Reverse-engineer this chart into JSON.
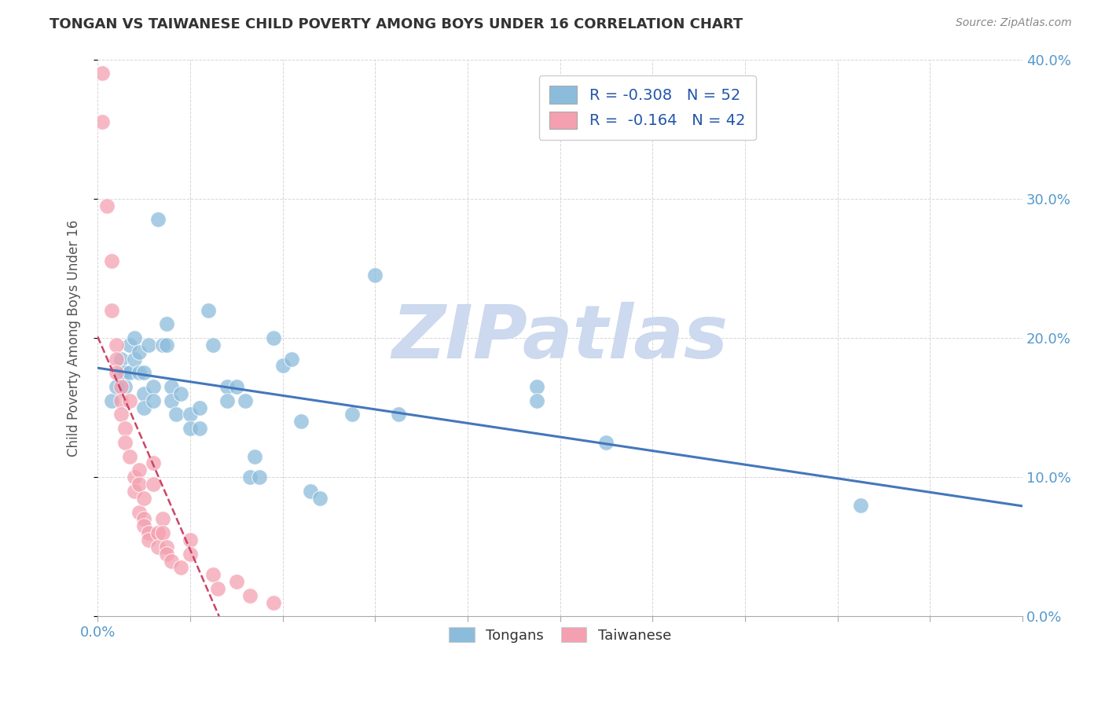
{
  "title": "TONGAN VS TAIWANESE CHILD POVERTY AMONG BOYS UNDER 16 CORRELATION CHART",
  "source": "Source: ZipAtlas.com",
  "ylabel": "Child Poverty Among Boys Under 16",
  "xlim": [
    0.0,
    0.2
  ],
  "ylim": [
    0.0,
    0.4
  ],
  "xticks": [
    0.0,
    0.02,
    0.04,
    0.06,
    0.08,
    0.1,
    0.12,
    0.14,
    0.16,
    0.18,
    0.2
  ],
  "xtick_labels_sparse": {
    "0.0": "0.0%",
    "0.20": "20.0%"
  },
  "yticks": [
    0.0,
    0.1,
    0.2,
    0.3,
    0.4
  ],
  "ytick_labels_right": [
    "0.0%",
    "10.0%",
    "20.0%",
    "30.0%",
    "40.0%"
  ],
  "legend_line1": "R = -0.308   N = 52",
  "legend_line2": "R =  -0.164   N = 42",
  "legend_labels_bottom": [
    "Tongans",
    "Taiwanese"
  ],
  "tongan_color": "#8bbcdb",
  "taiwanese_color": "#f4a0b0",
  "tongan_line_color": "#4477bb",
  "taiwanese_line_color": "#cc4466",
  "watermark": "ZIPatlas",
  "watermark_color": "#ccd9ee",
  "background_color": "#ffffff",
  "grid_color": "#cccccc",
  "title_color": "#333333",
  "axis_label_color": "#555555",
  "tick_label_color_right": "#5599cc",
  "tick_label_color_bottom": "#5599cc",
  "tongan_points": [
    [
      0.003,
      0.155
    ],
    [
      0.004,
      0.165
    ],
    [
      0.005,
      0.175
    ],
    [
      0.005,
      0.185
    ],
    [
      0.006,
      0.175
    ],
    [
      0.006,
      0.165
    ],
    [
      0.007,
      0.195
    ],
    [
      0.007,
      0.175
    ],
    [
      0.008,
      0.185
    ],
    [
      0.008,
      0.2
    ],
    [
      0.009,
      0.175
    ],
    [
      0.009,
      0.19
    ],
    [
      0.01,
      0.175
    ],
    [
      0.01,
      0.16
    ],
    [
      0.01,
      0.15
    ],
    [
      0.011,
      0.195
    ],
    [
      0.012,
      0.165
    ],
    [
      0.012,
      0.155
    ],
    [
      0.013,
      0.285
    ],
    [
      0.014,
      0.195
    ],
    [
      0.015,
      0.195
    ],
    [
      0.015,
      0.21
    ],
    [
      0.016,
      0.165
    ],
    [
      0.016,
      0.155
    ],
    [
      0.017,
      0.145
    ],
    [
      0.018,
      0.16
    ],
    [
      0.02,
      0.145
    ],
    [
      0.02,
      0.135
    ],
    [
      0.022,
      0.15
    ],
    [
      0.022,
      0.135
    ],
    [
      0.024,
      0.22
    ],
    [
      0.025,
      0.195
    ],
    [
      0.028,
      0.165
    ],
    [
      0.028,
      0.155
    ],
    [
      0.03,
      0.165
    ],
    [
      0.032,
      0.155
    ],
    [
      0.033,
      0.1
    ],
    [
      0.034,
      0.115
    ],
    [
      0.035,
      0.1
    ],
    [
      0.038,
      0.2
    ],
    [
      0.04,
      0.18
    ],
    [
      0.042,
      0.185
    ],
    [
      0.044,
      0.14
    ],
    [
      0.046,
      0.09
    ],
    [
      0.048,
      0.085
    ],
    [
      0.055,
      0.145
    ],
    [
      0.06,
      0.245
    ],
    [
      0.065,
      0.145
    ],
    [
      0.095,
      0.165
    ],
    [
      0.095,
      0.155
    ],
    [
      0.11,
      0.125
    ],
    [
      0.165,
      0.08
    ]
  ],
  "taiwanese_points": [
    [
      0.001,
      0.39
    ],
    [
      0.001,
      0.355
    ],
    [
      0.002,
      0.295
    ],
    [
      0.003,
      0.255
    ],
    [
      0.003,
      0.22
    ],
    [
      0.004,
      0.195
    ],
    [
      0.004,
      0.185
    ],
    [
      0.004,
      0.175
    ],
    [
      0.005,
      0.165
    ],
    [
      0.005,
      0.155
    ],
    [
      0.005,
      0.145
    ],
    [
      0.006,
      0.135
    ],
    [
      0.006,
      0.125
    ],
    [
      0.007,
      0.155
    ],
    [
      0.007,
      0.115
    ],
    [
      0.008,
      0.1
    ],
    [
      0.008,
      0.09
    ],
    [
      0.009,
      0.105
    ],
    [
      0.009,
      0.095
    ],
    [
      0.009,
      0.075
    ],
    [
      0.01,
      0.085
    ],
    [
      0.01,
      0.07
    ],
    [
      0.01,
      0.065
    ],
    [
      0.011,
      0.06
    ],
    [
      0.011,
      0.055
    ],
    [
      0.012,
      0.11
    ],
    [
      0.012,
      0.095
    ],
    [
      0.013,
      0.06
    ],
    [
      0.013,
      0.05
    ],
    [
      0.014,
      0.07
    ],
    [
      0.014,
      0.06
    ],
    [
      0.015,
      0.05
    ],
    [
      0.015,
      0.045
    ],
    [
      0.016,
      0.04
    ],
    [
      0.018,
      0.035
    ],
    [
      0.02,
      0.055
    ],
    [
      0.02,
      0.045
    ],
    [
      0.025,
      0.03
    ],
    [
      0.026,
      0.02
    ],
    [
      0.03,
      0.025
    ],
    [
      0.033,
      0.015
    ],
    [
      0.038,
      0.01
    ]
  ]
}
